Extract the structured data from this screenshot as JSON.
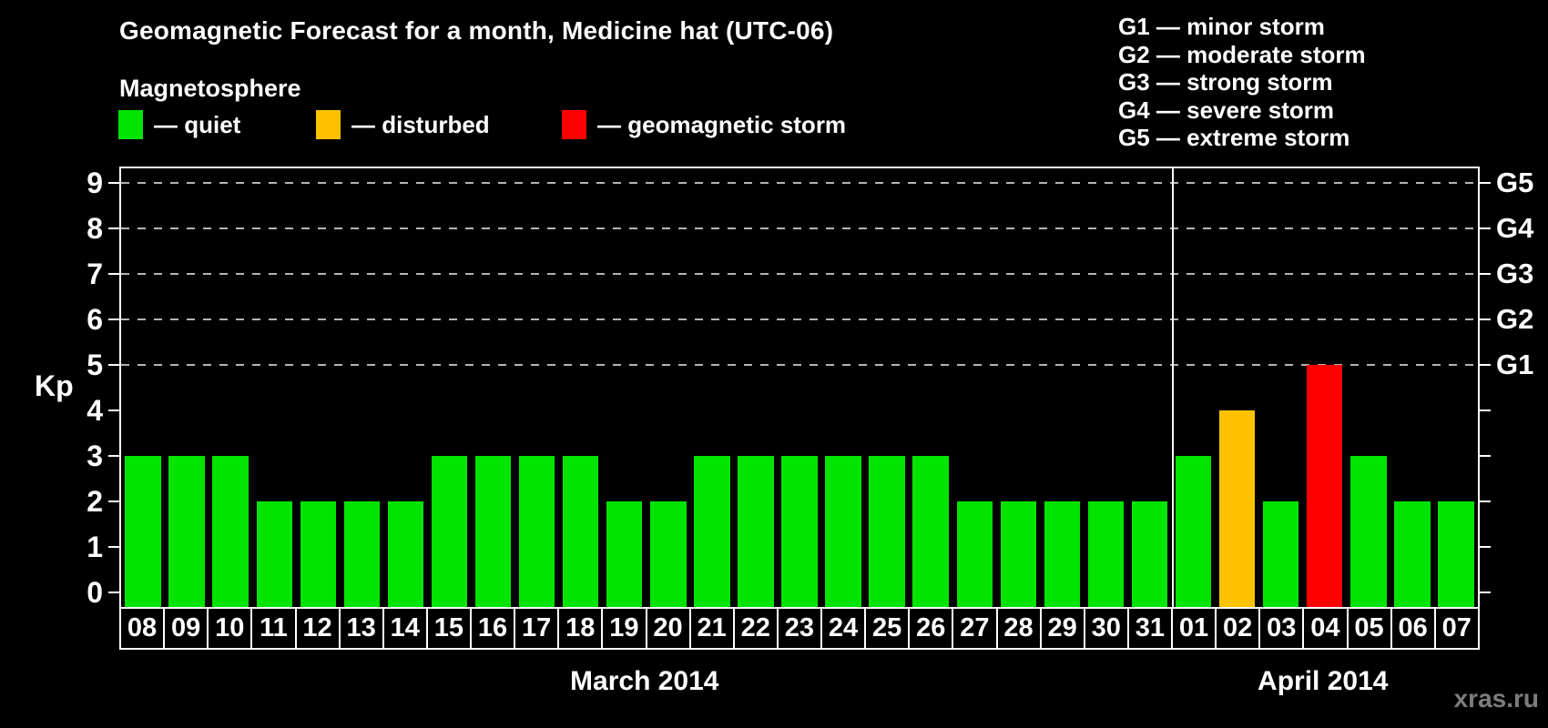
{
  "title": "Geomagnetic Forecast for a month, Medicine hat (UTC-06)",
  "subtitle": "Magnetosphere",
  "watermark": "xras.ru",
  "colors": {
    "quiet": "#00e400",
    "disturbed": "#ffc200",
    "storm": "#ff0000",
    "axis": "#ffffff",
    "grid": "#b4b4b4",
    "background": "#000000"
  },
  "legend": [
    {
      "name": "quiet",
      "label": "— quiet"
    },
    {
      "name": "disturbed",
      "label": "— disturbed"
    },
    {
      "name": "storm",
      "label": "— geomagnetic storm"
    }
  ],
  "g_scale_legend": [
    "G1 — minor storm",
    "G2 — moderate storm",
    "G3 — strong storm",
    "G4 — severe storm",
    "G5 — extreme storm"
  ],
  "chart_data": {
    "type": "bar",
    "ylabel": "Kp",
    "ylim": [
      0,
      9
    ],
    "y_ticks": [
      0,
      1,
      2,
      3,
      4,
      5,
      6,
      7,
      8,
      9
    ],
    "gridlines_at_kp": [
      5,
      6,
      7,
      8,
      9
    ],
    "right_axis": [
      {
        "kp": 5,
        "label": "G1"
      },
      {
        "kp": 6,
        "label": "G2"
      },
      {
        "kp": 7,
        "label": "G3"
      },
      {
        "kp": 8,
        "label": "G4"
      },
      {
        "kp": 9,
        "label": "G5"
      }
    ],
    "months": [
      {
        "label": "March 2014",
        "days": [
          {
            "day": "08",
            "kp": 3,
            "status": "quiet"
          },
          {
            "day": "09",
            "kp": 3,
            "status": "quiet"
          },
          {
            "day": "10",
            "kp": 3,
            "status": "quiet"
          },
          {
            "day": "11",
            "kp": 2,
            "status": "quiet"
          },
          {
            "day": "12",
            "kp": 2,
            "status": "quiet"
          },
          {
            "day": "13",
            "kp": 2,
            "status": "quiet"
          },
          {
            "day": "14",
            "kp": 2,
            "status": "quiet"
          },
          {
            "day": "15",
            "kp": 3,
            "status": "quiet"
          },
          {
            "day": "16",
            "kp": 3,
            "status": "quiet"
          },
          {
            "day": "17",
            "kp": 3,
            "status": "quiet"
          },
          {
            "day": "18",
            "kp": 3,
            "status": "quiet"
          },
          {
            "day": "19",
            "kp": 2,
            "status": "quiet"
          },
          {
            "day": "20",
            "kp": 2,
            "status": "quiet"
          },
          {
            "day": "21",
            "kp": 3,
            "status": "quiet"
          },
          {
            "day": "22",
            "kp": 3,
            "status": "quiet"
          },
          {
            "day": "23",
            "kp": 3,
            "status": "quiet"
          },
          {
            "day": "24",
            "kp": 3,
            "status": "quiet"
          },
          {
            "day": "25",
            "kp": 3,
            "status": "quiet"
          },
          {
            "day": "26",
            "kp": 3,
            "status": "quiet"
          },
          {
            "day": "27",
            "kp": 2,
            "status": "quiet"
          },
          {
            "day": "28",
            "kp": 2,
            "status": "quiet"
          },
          {
            "day": "29",
            "kp": 2,
            "status": "quiet"
          },
          {
            "day": "30",
            "kp": 2,
            "status": "quiet"
          },
          {
            "day": "31",
            "kp": 2,
            "status": "quiet"
          }
        ]
      },
      {
        "label": "April 2014",
        "days": [
          {
            "day": "01",
            "kp": 3,
            "status": "quiet"
          },
          {
            "day": "02",
            "kp": 4,
            "status": "disturbed"
          },
          {
            "day": "03",
            "kp": 2,
            "status": "quiet"
          },
          {
            "day": "04",
            "kp": 5,
            "status": "storm"
          },
          {
            "day": "05",
            "kp": 3,
            "status": "quiet"
          },
          {
            "day": "06",
            "kp": 2,
            "status": "quiet"
          },
          {
            "day": "07",
            "kp": 2,
            "status": "quiet"
          }
        ]
      }
    ]
  }
}
